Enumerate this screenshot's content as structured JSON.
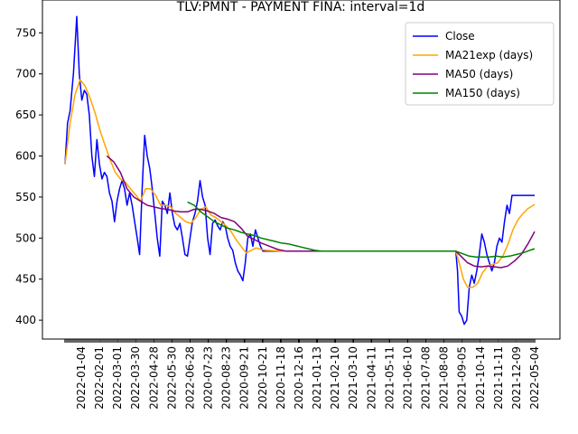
{
  "chart_data": {
    "type": "line",
    "title": "TLV:PMNT - PAYMENT FINA: interval=1d",
    "xlabel": "",
    "ylabel": "",
    "ylim": [
      377,
      790
    ],
    "y_ticks": [
      400,
      450,
      500,
      550,
      600,
      650,
      700,
      750
    ],
    "x_tick_labels": [
      "2022-01-04",
      "2022-02-01",
      "2022-03-01",
      "2022-03-30",
      "2022-04-28",
      "2022-05-30",
      "2022-06-28",
      "2020-07-23",
      "2020-08-23",
      "2020-09-21",
      "2020-10-21",
      "2020-11-18",
      "2020-12-16",
      "2021-01-13",
      "2021-02-10",
      "2021-03-10",
      "2021-04-11",
      "2021-05-11",
      "2021-06-10",
      "2021-07-08",
      "2021-08-08",
      "2021-09-05",
      "2021-10-14",
      "2021-11-11",
      "2021-12-09",
      "2022-05-04"
    ],
    "grid": false,
    "legend_position": "upper right",
    "series": [
      {
        "name": "Close",
        "color": "#0000ff",
        "points": [
          [
            0,
            590
          ],
          [
            0.15,
            640
          ],
          [
            0.3,
            655
          ],
          [
            0.5,
            700
          ],
          [
            0.7,
            770
          ],
          [
            0.85,
            700
          ],
          [
            1.0,
            668
          ],
          [
            1.15,
            680
          ],
          [
            1.3,
            675
          ],
          [
            1.45,
            650
          ],
          [
            1.6,
            600
          ],
          [
            1.75,
            575
          ],
          [
            1.9,
            620
          ],
          [
            2.05,
            590
          ],
          [
            2.2,
            572
          ],
          [
            2.35,
            580
          ],
          [
            2.5,
            575
          ],
          [
            2.65,
            555
          ],
          [
            2.8,
            545
          ],
          [
            2.95,
            520
          ],
          [
            3.1,
            545
          ],
          [
            3.25,
            560
          ],
          [
            3.4,
            570
          ],
          [
            3.55,
            560
          ],
          [
            3.7,
            540
          ],
          [
            3.85,
            555
          ],
          [
            4.0,
            540
          ],
          [
            4.15,
            520
          ],
          [
            4.3,
            500
          ],
          [
            4.45,
            480
          ],
          [
            4.6,
            560
          ],
          [
            4.75,
            625
          ],
          [
            4.9,
            600
          ],
          [
            5.05,
            585
          ],
          [
            5.2,
            560
          ],
          [
            5.35,
            530
          ],
          [
            5.5,
            500
          ],
          [
            5.65,
            478
          ],
          [
            5.8,
            545
          ],
          [
            5.95,
            540
          ],
          [
            6.1,
            530
          ],
          [
            6.25,
            555
          ],
          [
            6.4,
            530
          ],
          [
            6.55,
            515
          ],
          [
            6.7,
            510
          ],
          [
            6.85,
            518
          ],
          [
            7.0,
            500
          ],
          [
            7.15,
            480
          ],
          [
            7.3,
            478
          ],
          [
            7.45,
            500
          ],
          [
            7.6,
            520
          ],
          [
            7.75,
            530
          ],
          [
            7.9,
            545
          ],
          [
            8.05,
            570
          ],
          [
            8.2,
            550
          ],
          [
            8.35,
            540
          ],
          [
            8.5,
            500
          ],
          [
            8.65,
            480
          ],
          [
            8.8,
            518
          ],
          [
            8.95,
            522
          ],
          [
            9.1,
            515
          ],
          [
            9.25,
            510
          ],
          [
            9.4,
            520
          ],
          [
            9.55,
            515
          ],
          [
            9.7,
            500
          ],
          [
            9.85,
            490
          ],
          [
            10.0,
            485
          ],
          [
            10.15,
            470
          ],
          [
            10.3,
            460
          ],
          [
            10.45,
            455
          ],
          [
            10.6,
            448
          ],
          [
            10.75,
            470
          ],
          [
            10.9,
            500
          ],
          [
            11.05,
            505
          ],
          [
            11.2,
            490
          ],
          [
            11.35,
            510
          ],
          [
            11.5,
            500
          ],
          [
            11.65,
            490
          ],
          [
            11.8,
            484
          ],
          [
            12.0,
            484
          ],
          [
            13.0,
            484
          ],
          [
            14.0,
            484
          ],
          [
            16.0,
            484
          ],
          [
            18.0,
            484
          ],
          [
            20.0,
            484
          ],
          [
            22.0,
            484
          ],
          [
            23.3,
            484
          ],
          [
            23.4,
            460
          ],
          [
            23.5,
            410
          ],
          [
            23.65,
            405
          ],
          [
            23.8,
            395
          ],
          [
            23.95,
            400
          ],
          [
            24.1,
            440
          ],
          [
            24.25,
            455
          ],
          [
            24.4,
            445
          ],
          [
            24.55,
            460
          ],
          [
            24.7,
            480
          ],
          [
            24.85,
            505
          ],
          [
            25.0,
            495
          ],
          [
            25.15,
            480
          ],
          [
            25.3,
            470
          ],
          [
            25.45,
            460
          ],
          [
            25.6,
            470
          ],
          [
            25.75,
            490
          ],
          [
            25.9,
            500
          ],
          [
            26.05,
            495
          ],
          [
            26.2,
            520
          ],
          [
            26.35,
            540
          ],
          [
            26.5,
            530
          ],
          [
            26.65,
            552
          ],
          [
            27.0,
            552
          ],
          [
            27.5,
            552
          ],
          [
            28.0,
            552
          ]
        ]
      },
      {
        "name": "MA21exp (days)",
        "color": "#ffa500",
        "points": [
          [
            0,
            590
          ],
          [
            0.3,
            640
          ],
          [
            0.6,
            675
          ],
          [
            0.9,
            693
          ],
          [
            1.2,
            685
          ],
          [
            1.5,
            670
          ],
          [
            1.8,
            652
          ],
          [
            2.1,
            630
          ],
          [
            2.4,
            612
          ],
          [
            2.7,
            595
          ],
          [
            3.0,
            580
          ],
          [
            3.3,
            572
          ],
          [
            3.6,
            568
          ],
          [
            3.9,
            560
          ],
          [
            4.2,
            553
          ],
          [
            4.5,
            545
          ],
          [
            4.8,
            560
          ],
          [
            5.1,
            560
          ],
          [
            5.4,
            552
          ],
          [
            5.7,
            540
          ],
          [
            6.0,
            540
          ],
          [
            6.3,
            538
          ],
          [
            6.6,
            530
          ],
          [
            6.9,
            525
          ],
          [
            7.2,
            520
          ],
          [
            7.5,
            518
          ],
          [
            7.8,
            525
          ],
          [
            8.1,
            535
          ],
          [
            8.4,
            538
          ],
          [
            8.7,
            528
          ],
          [
            9.0,
            525
          ],
          [
            9.3,
            520
          ],
          [
            9.6,
            515
          ],
          [
            9.9,
            508
          ],
          [
            10.2,
            498
          ],
          [
            10.5,
            490
          ],
          [
            10.8,
            482
          ],
          [
            11.1,
            485
          ],
          [
            11.4,
            488
          ],
          [
            11.7,
            486
          ],
          [
            12.0,
            485
          ],
          [
            13.0,
            484
          ],
          [
            15.0,
            484
          ],
          [
            18.0,
            484
          ],
          [
            21.0,
            484
          ],
          [
            23.3,
            484
          ],
          [
            23.5,
            470
          ],
          [
            23.75,
            450
          ],
          [
            24.0,
            440
          ],
          [
            24.3,
            440
          ],
          [
            24.6,
            445
          ],
          [
            24.9,
            458
          ],
          [
            25.2,
            466
          ],
          [
            25.5,
            468
          ],
          [
            25.8,
            470
          ],
          [
            26.1,
            478
          ],
          [
            26.4,
            492
          ],
          [
            26.7,
            510
          ],
          [
            27.0,
            522
          ],
          [
            27.3,
            530
          ],
          [
            27.6,
            536
          ],
          [
            28.0,
            541
          ]
        ]
      },
      {
        "name": "MA50 (days)",
        "color": "#800080",
        "points": [
          [
            2.5,
            600
          ],
          [
            2.9,
            593
          ],
          [
            3.3,
            580
          ],
          [
            3.7,
            560
          ],
          [
            4.1,
            550
          ],
          [
            4.5,
            545
          ],
          [
            4.9,
            540
          ],
          [
            5.3,
            538
          ],
          [
            5.7,
            536
          ],
          [
            6.1,
            535
          ],
          [
            6.5,
            533
          ],
          [
            6.9,
            532
          ],
          [
            7.3,
            532
          ],
          [
            7.7,
            535
          ],
          [
            8.1,
            535
          ],
          [
            8.5,
            533
          ],
          [
            8.9,
            530
          ],
          [
            9.3,
            525
          ],
          [
            9.7,
            523
          ],
          [
            10.1,
            520
          ],
          [
            10.5,
            512
          ],
          [
            10.9,
            502
          ],
          [
            11.3,
            498
          ],
          [
            11.7,
            494
          ],
          [
            12.2,
            490
          ],
          [
            12.7,
            486
          ],
          [
            13.2,
            484
          ],
          [
            14.0,
            484
          ],
          [
            16.0,
            484
          ],
          [
            19.0,
            484
          ],
          [
            23.3,
            484
          ],
          [
            23.6,
            478
          ],
          [
            24.0,
            470
          ],
          [
            24.4,
            466
          ],
          [
            24.8,
            465
          ],
          [
            25.2,
            466
          ],
          [
            25.6,
            465
          ],
          [
            26.0,
            464
          ],
          [
            26.4,
            466
          ],
          [
            26.8,
            472
          ],
          [
            27.2,
            480
          ],
          [
            27.6,
            493
          ],
          [
            28.0,
            508
          ]
        ]
      },
      {
        "name": "MA150 (days)",
        "color": "#008000",
        "points": [
          [
            7.3,
            544
          ],
          [
            7.7,
            540
          ],
          [
            8.1,
            532
          ],
          [
            8.5,
            526
          ],
          [
            8.9,
            520
          ],
          [
            9.3,
            516
          ],
          [
            9.7,
            512
          ],
          [
            10.1,
            510
          ],
          [
            10.5,
            507
          ],
          [
            10.9,
            505
          ],
          [
            11.3,
            503
          ],
          [
            11.7,
            500
          ],
          [
            12.1,
            498
          ],
          [
            12.5,
            496
          ],
          [
            12.9,
            494
          ],
          [
            13.3,
            493
          ],
          [
            13.7,
            491
          ],
          [
            14.1,
            489
          ],
          [
            14.5,
            487
          ],
          [
            14.9,
            485
          ],
          [
            15.3,
            484
          ],
          [
            16.0,
            484
          ],
          [
            18.0,
            484
          ],
          [
            21.0,
            484
          ],
          [
            23.3,
            484
          ],
          [
            23.7,
            481
          ],
          [
            24.1,
            478
          ],
          [
            24.5,
            477
          ],
          [
            24.9,
            477
          ],
          [
            25.3,
            477
          ],
          [
            25.7,
            478
          ],
          [
            26.1,
            477
          ],
          [
            26.5,
            478
          ],
          [
            26.9,
            480
          ],
          [
            27.3,
            482
          ],
          [
            27.7,
            485
          ],
          [
            28.0,
            487
          ]
        ]
      }
    ]
  }
}
